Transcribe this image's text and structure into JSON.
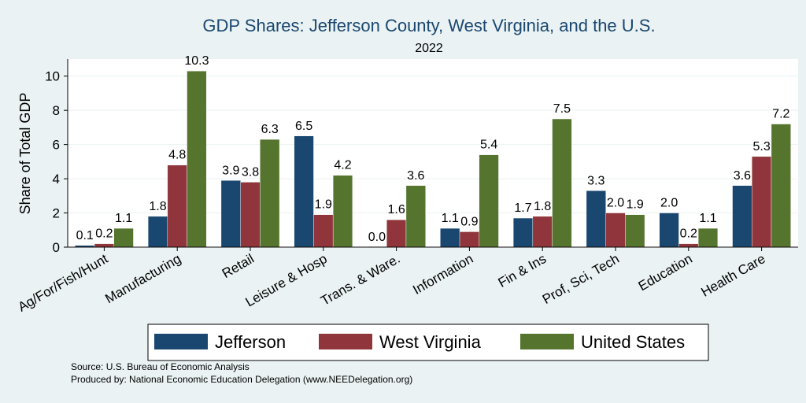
{
  "chart_data": {
    "type": "bar",
    "title": "GDP Shares: Jefferson County, West Virginia, and the U.S.",
    "subtitle": "2022",
    "xlabel": "",
    "ylabel": "Share of Total GDP",
    "ylim": [
      0,
      11
    ],
    "yticks": [
      0,
      2,
      4,
      6,
      8,
      10
    ],
    "grid": true,
    "legend_position": "bottom",
    "categories": [
      "Ag/For/Fish/Hunt",
      "Manufacturing",
      "Retail",
      "Leisure & Hosp",
      "Trans. & Ware.",
      "Information",
      "Fin & Ins",
      "Prof, Sci, Tech",
      "Education",
      "Health Care"
    ],
    "series": [
      {
        "name": "Jefferson",
        "color": "#1a476f",
        "values": [
          0.1,
          1.8,
          3.9,
          6.5,
          0.0,
          1.1,
          1.7,
          3.3,
          2.0,
          3.6
        ],
        "labels": [
          "0.1",
          "1.8",
          "3.9",
          "6.5",
          "0.0",
          "1.1",
          "1.7",
          "3.3",
          "2.0",
          "3.6"
        ]
      },
      {
        "name": "West Virginia",
        "color": "#90353b",
        "values": [
          0.2,
          4.8,
          3.8,
          1.9,
          1.6,
          0.9,
          1.8,
          2.0,
          0.2,
          5.3
        ],
        "labels": [
          "0.2",
          "4.8",
          "3.8",
          "1.9",
          "1.6",
          "0.9",
          "1.8",
          "2.0",
          "0.2",
          "5.3"
        ]
      },
      {
        "name": "United States",
        "color": "#55752f",
        "values": [
          1.1,
          10.3,
          6.3,
          4.2,
          3.6,
          5.4,
          7.5,
          1.9,
          1.1,
          7.2
        ],
        "labels": [
          "1.1",
          "10.3",
          "6.3",
          "4.2",
          "3.6",
          "5.4",
          "7.5",
          "1.9",
          "1.1",
          "7.2"
        ]
      }
    ],
    "notes": [
      "Source: U.S. Bureau of Economic Analysis",
      "Produced by: National Economic Education Delegation (www.NEEDelegation.org)"
    ]
  }
}
